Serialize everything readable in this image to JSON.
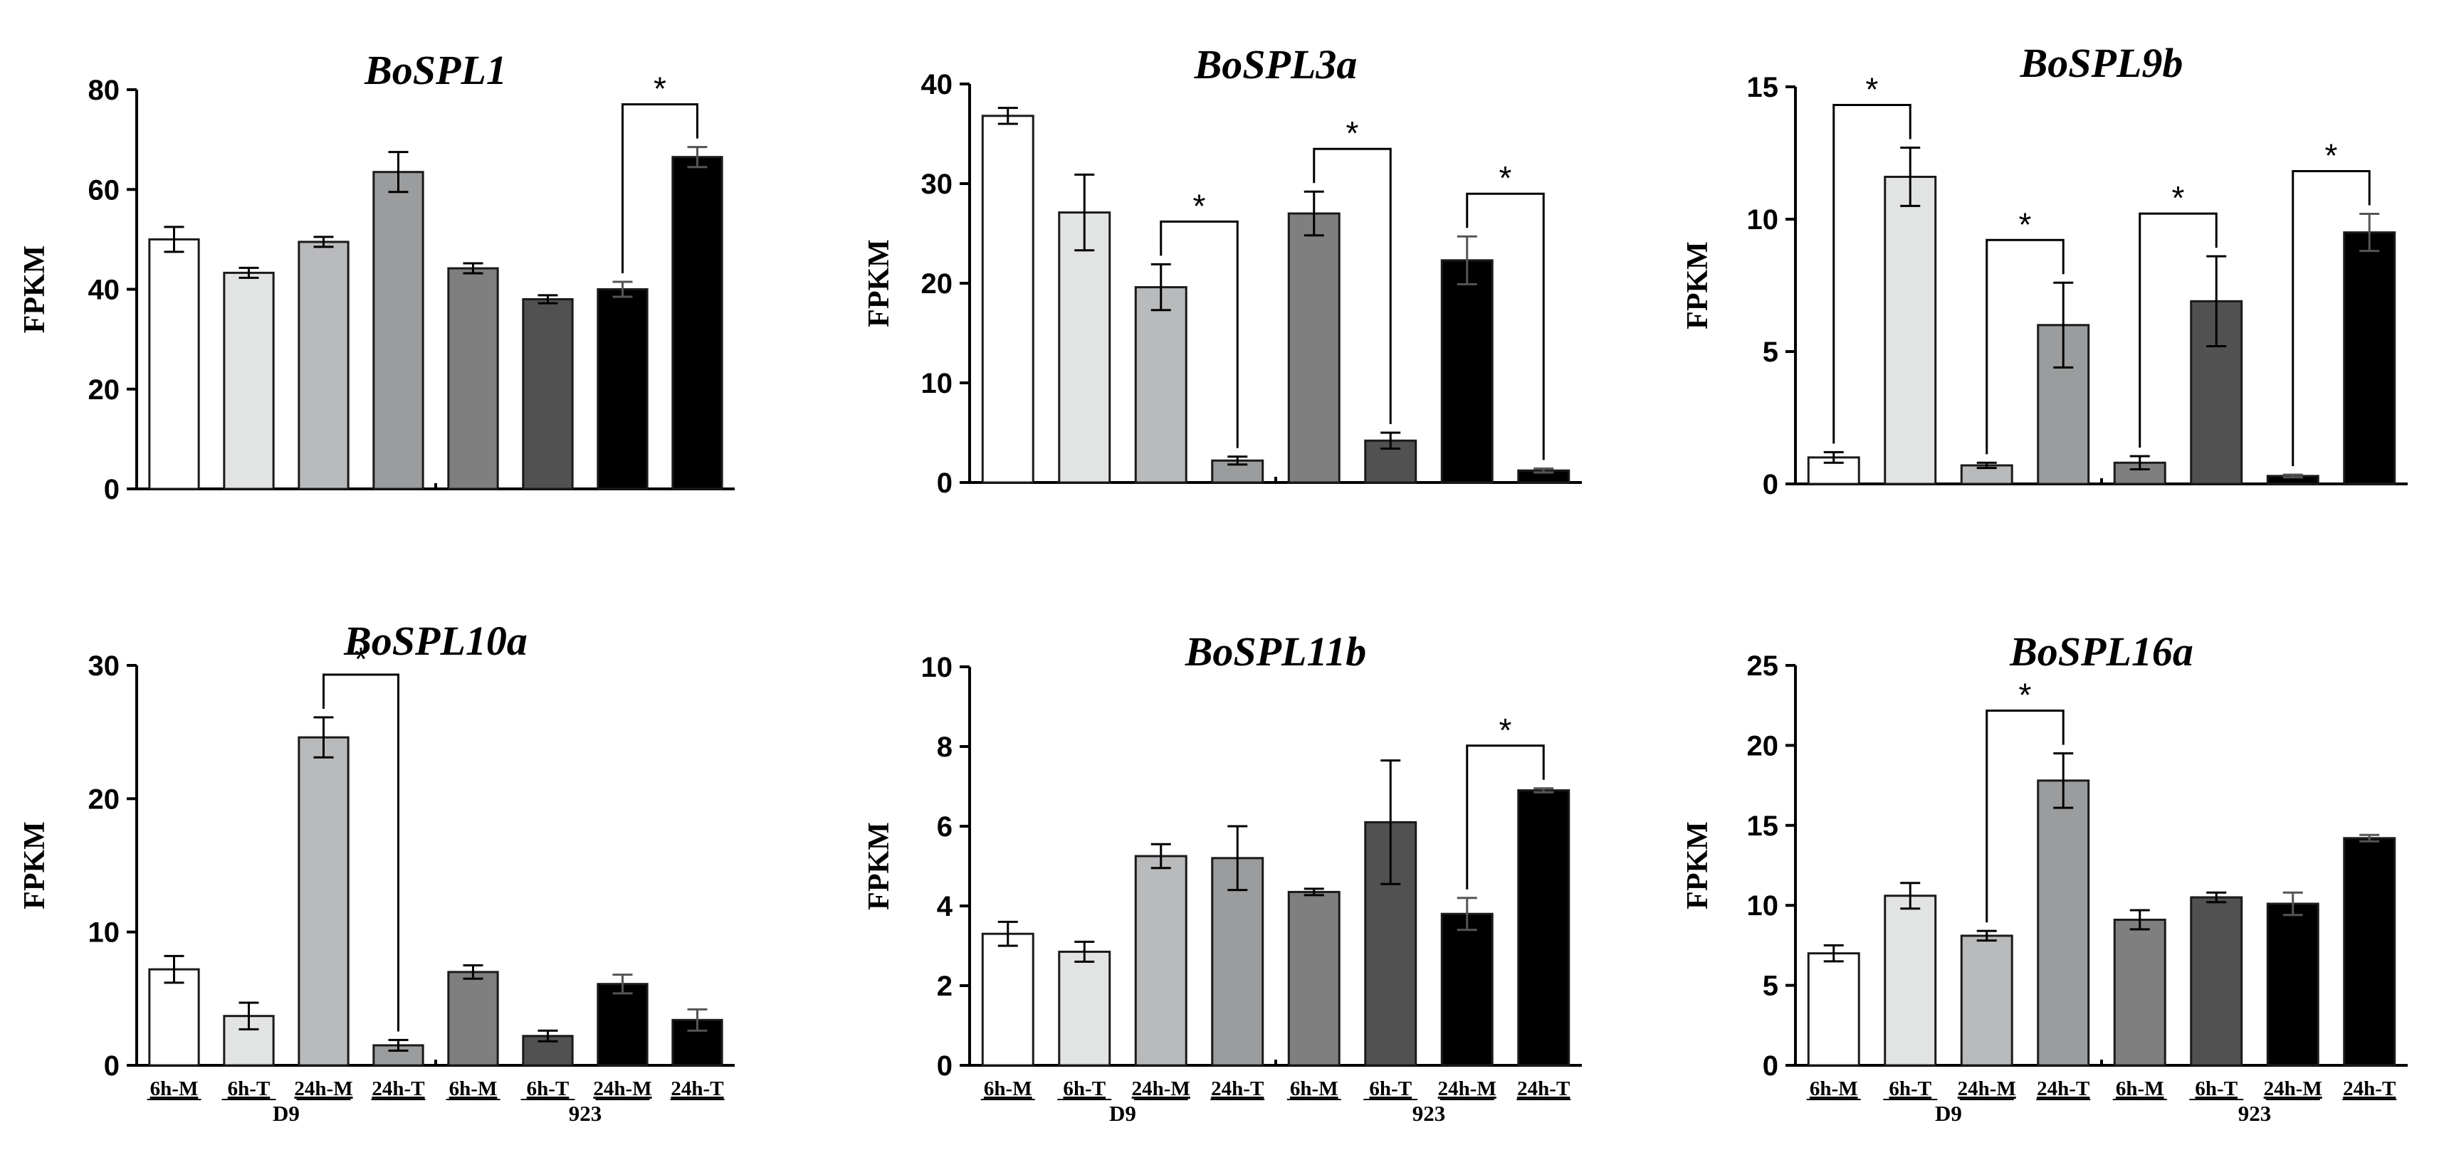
{
  "chart_data": [
    {
      "type": "bar",
      "title": "BoSPL1",
      "ylabel": "FPKM",
      "ylim": [
        0,
        80
      ],
      "yticks": [
        0,
        20,
        40,
        60,
        80
      ],
      "tick_labels": [
        "0",
        "20",
        "40",
        "60",
        "80"
      ],
      "categories": [
        "6h-M",
        "6h-T",
        "24h-M",
        "24h-T",
        "6h-M",
        "6h-T",
        "24h-M",
        "24h-T"
      ],
      "values": [
        50,
        43.3,
        49.5,
        63.5,
        44.2,
        38,
        40,
        66.5
      ],
      "errors": [
        2.5,
        1,
        1,
        4,
        1,
        0.8,
        1.5,
        2
      ],
      "significance": [
        {
          "from": 6,
          "to": 7,
          "label": "*"
        }
      ],
      "show_xlabels": false
    },
    {
      "type": "bar",
      "title": "BoSPL3a",
      "ylabel": "FPKM",
      "ylim": [
        0,
        40
      ],
      "yticks": [
        0,
        10,
        20,
        30,
        40
      ],
      "tick_labels": [
        "0",
        "10",
        "20",
        "30",
        "40"
      ],
      "categories": [
        "6h-M",
        "6h-T",
        "24h-M",
        "24h-T",
        "6h-M",
        "6h-T",
        "24h-M",
        "24h-T"
      ],
      "values": [
        36.8,
        27.1,
        19.6,
        2.2,
        27,
        4.2,
        22.3,
        1.2
      ],
      "errors": [
        0.8,
        3.8,
        2.3,
        0.4,
        2.2,
        0.8,
        2.4,
        0.2
      ],
      "significance": [
        {
          "from": 2,
          "to": 3,
          "label": "*"
        },
        {
          "from": 4,
          "to": 5,
          "label": "*"
        },
        {
          "from": 6,
          "to": 7,
          "label": "*"
        }
      ],
      "show_xlabels": false
    },
    {
      "type": "bar",
      "title": "BoSPL9b",
      "ylabel": "FPKM",
      "ylim": [
        0,
        15
      ],
      "yticks": [
        0,
        5,
        10,
        15
      ],
      "tick_labels": [
        "0",
        "5",
        "10",
        "15"
      ],
      "categories": [
        "6h-M",
        "6h-T",
        "24h-M",
        "24h-T",
        "6h-M",
        "6h-T",
        "24h-M",
        "24h-T"
      ],
      "values": [
        1,
        11.6,
        0.7,
        6,
        0.8,
        6.9,
        0.3,
        9.5
      ],
      "errors": [
        0.2,
        1.1,
        0.1,
        1.6,
        0.25,
        1.7,
        0.05,
        0.7
      ],
      "significance": [
        {
          "from": 0,
          "to": 1,
          "label": "*"
        },
        {
          "from": 2,
          "to": 3,
          "label": "*"
        },
        {
          "from": 4,
          "to": 5,
          "label": "*"
        },
        {
          "from": 6,
          "to": 7,
          "label": "*"
        }
      ],
      "show_xlabels": false
    },
    {
      "type": "bar",
      "title": "BoSPL10a",
      "ylabel": "FPKM",
      "ylim": [
        0,
        30
      ],
      "yticks": [
        0,
        10,
        20,
        30
      ],
      "tick_labels": [
        "0",
        "10",
        "20",
        "30"
      ],
      "categories": [
        "6h-M",
        "6h-T",
        "24h-M",
        "24h-T",
        "6h-M",
        "6h-T",
        "24h-M",
        "24h-T"
      ],
      "values": [
        7.2,
        3.7,
        24.6,
        1.5,
        7,
        2.2,
        6.1,
        3.4
      ],
      "errors": [
        1,
        1,
        1.5,
        0.4,
        0.5,
        0.4,
        0.7,
        0.8
      ],
      "significance": [
        {
          "from": 2,
          "to": 3,
          "label": "*"
        }
      ],
      "show_xlabels": true,
      "groups": [
        "D9",
        "923"
      ]
    },
    {
      "type": "bar",
      "title": "BoSPL11b",
      "ylabel": "FPKM",
      "ylim": [
        0,
        10
      ],
      "yticks": [
        0,
        2,
        4,
        6,
        8,
        10
      ],
      "tick_labels": [
        "0",
        "2",
        "4",
        "6",
        "8",
        "10"
      ],
      "categories": [
        "6h-M",
        "6h-T",
        "24h-M",
        "24h-T",
        "6h-M",
        "6h-T",
        "24h-M",
        "24h-T"
      ],
      "values": [
        3.3,
        2.85,
        5.25,
        5.2,
        4.35,
        6.1,
        3.8,
        6.9
      ],
      "errors": [
        0.3,
        0.25,
        0.3,
        0.8,
        0.08,
        1.55,
        0.4,
        0.05
      ],
      "significance": [
        {
          "from": 6,
          "to": 7,
          "label": "*"
        }
      ],
      "show_xlabels": true,
      "groups": [
        "D9",
        "923"
      ]
    },
    {
      "type": "bar",
      "title": "BoSPL16a",
      "ylabel": "FPKM",
      "ylim": [
        0,
        25
      ],
      "yticks": [
        0,
        5,
        10,
        15,
        20,
        25
      ],
      "tick_labels": [
        "0",
        "5",
        "10",
        "15",
        "20",
        "25"
      ],
      "categories": [
        "6h-M",
        "6h-T",
        "24h-M",
        "24h-T",
        "6h-M",
        "6h-T",
        "24h-M",
        "24h-T"
      ],
      "values": [
        7,
        10.6,
        8.1,
        17.8,
        9.1,
        10.5,
        10.1,
        14.2
      ],
      "errors": [
        0.5,
        0.8,
        0.3,
        1.7,
        0.6,
        0.3,
        0.7,
        0.2
      ],
      "significance": [
        {
          "from": 2,
          "to": 3,
          "label": "*"
        }
      ],
      "show_xlabels": true,
      "groups": [
        "D9",
        "923"
      ]
    }
  ],
  "bar_colors": [
    "#ffffff",
    "#e2e4e3",
    "#b9babc",
    "#9b9c9e",
    "#7f7f7f",
    "#515151",
    "#000000",
    "#000000"
  ]
}
